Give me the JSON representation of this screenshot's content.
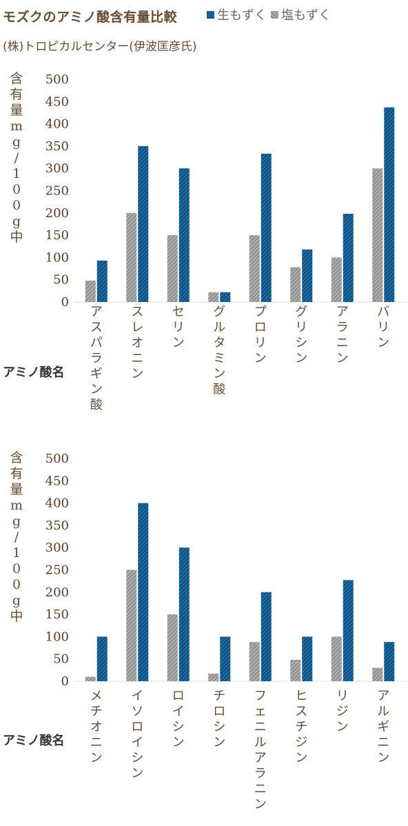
{
  "header": {
    "title": "モズクのアミノ酸含有量比較",
    "subtitle": "(株)トロピカルセンター(伊波匡彦氏)"
  },
  "legend": {
    "fresh": "生もずく",
    "salted": "塩もずく"
  },
  "colors": {
    "fresh": "#0f5a8c",
    "salted": "#a3a3a3",
    "text": "#6b4a2f"
  },
  "chart_data": [
    {
      "type": "bar",
      "categories": [
        "アスパラギン酸",
        "スレオニン",
        "セリン",
        "グルタミン酸",
        "プロリン",
        "グリシン",
        "アラニン",
        "バリン"
      ],
      "series": [
        {
          "name": "生もずく",
          "values": [
            93,
            350,
            300,
            22,
            333,
            118,
            198,
            437
          ]
        },
        {
          "name": "塩もずく",
          "values": [
            48,
            200,
            150,
            22,
            150,
            78,
            100,
            300
          ]
        }
      ],
      "ylabel": "含有量mg/100g中",
      "xlabel": "アミノ酸名",
      "ylim": [
        0,
        500
      ],
      "yticks": [
        0,
        50,
        100,
        150,
        200,
        250,
        300,
        350,
        400,
        450,
        500
      ],
      "grid": false,
      "legend_position": "top-right"
    },
    {
      "type": "bar",
      "categories": [
        "メチオニン",
        "イソロイシン",
        "ロイシン",
        "チロシン",
        "フェニルアラニン",
        "ヒスチジン",
        "リジン",
        "アルギニン"
      ],
      "series": [
        {
          "name": "生もずく",
          "values": [
            100,
            400,
            300,
            100,
            200,
            100,
            227,
            88
          ]
        },
        {
          "name": "塩もずく",
          "values": [
            10,
            250,
            150,
            17,
            88,
            48,
            100,
            30
          ]
        }
      ],
      "ylabel": "含有量mg/100g中",
      "xlabel": "アミノ酸名",
      "ylim": [
        0,
        500
      ],
      "yticks": [
        0,
        50,
        100,
        150,
        200,
        250,
        300,
        350,
        400,
        450,
        500
      ],
      "grid": false
    }
  ]
}
